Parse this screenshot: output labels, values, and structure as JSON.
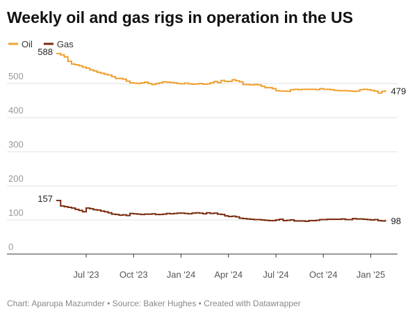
{
  "chart_data": {
    "type": "step-line",
    "title": "Weekly oil and gas rigs in operation in the US",
    "source": "Chart: Aparupa Mazumder • Source: Baker Hughes • Created with Datawrapper",
    "categories": [
      null,
      null,
      null,
      null,
      null,
      null,
      null,
      null,
      "Jul '23",
      null,
      null,
      null,
      null,
      null,
      null,
      null,
      null,
      null,
      null,
      null,
      null,
      "Oct '23",
      null,
      null,
      null,
      null,
      null,
      null,
      null,
      null,
      null,
      null,
      null,
      null,
      "Jan '24",
      null,
      null,
      null,
      null,
      null,
      null,
      null,
      null,
      null,
      null,
      null,
      null,
      "Apr '24",
      null,
      null,
      null,
      null,
      null,
      null,
      null,
      null,
      null,
      null,
      null,
      null,
      "Jul '24",
      null,
      null,
      null,
      null,
      null,
      null,
      null,
      null,
      null,
      null,
      null,
      null,
      "Oct '24",
      null,
      null,
      null,
      null,
      null,
      null,
      null,
      null,
      null,
      null,
      null,
      null,
      "Jan '25",
      null,
      null,
      null,
      null
    ],
    "series": [
      {
        "name": "Oil",
        "color": "#f0a030",
        "values": [
          588,
          584,
          578,
          565,
          557,
          555,
          552,
          548,
          545,
          540,
          537,
          533,
          530,
          527,
          525,
          520,
          515,
          515,
          513,
          507,
          502,
          501,
          500,
          502,
          504,
          500,
          497,
          500,
          502,
          505,
          504,
          503,
          502,
          500,
          499,
          501,
          499,
          498,
          499,
          500,
          498,
          499,
          502,
          506,
          503,
          509,
          506,
          506,
          511,
          508,
          505,
          497,
          497,
          496,
          497,
          496,
          492,
          488,
          488,
          485,
          479,
          478,
          478,
          477,
          482,
          483,
          482,
          483,
          483,
          483,
          483,
          482,
          485,
          483,
          483,
          482,
          480,
          479,
          479,
          479,
          478,
          477,
          478,
          482,
          483,
          482,
          480,
          478,
          472,
          477,
          479
        ]
      },
      {
        "name": "Gas",
        "color": "#7a2a0c",
        "values": [
          157,
          141,
          139,
          137,
          135,
          131,
          128,
          124,
          135,
          133,
          130,
          129,
          126,
          124,
          121,
          117,
          116,
          114,
          115,
          113,
          119,
          118,
          117,
          116,
          117,
          117,
          118,
          116,
          116,
          117,
          119,
          118,
          119,
          120,
          120,
          119,
          118,
          120,
          121,
          120,
          118,
          121,
          119,
          120,
          117,
          116,
          112,
          110,
          111,
          109,
          105,
          104,
          103,
          102,
          101,
          101,
          100,
          99,
          98,
          98,
          100,
          102,
          98,
          99,
          100,
          97,
          97,
          97,
          96,
          98,
          98,
          99,
          101,
          101,
          102,
          102,
          102,
          102,
          103,
          101,
          101,
          104,
          103,
          103,
          102,
          101,
          100,
          101,
          98,
          97,
          98
        ]
      }
    ],
    "ylim": [
      0,
      600
    ],
    "yticks": [
      0,
      100,
      200,
      300,
      400,
      500
    ],
    "grid": true
  }
}
